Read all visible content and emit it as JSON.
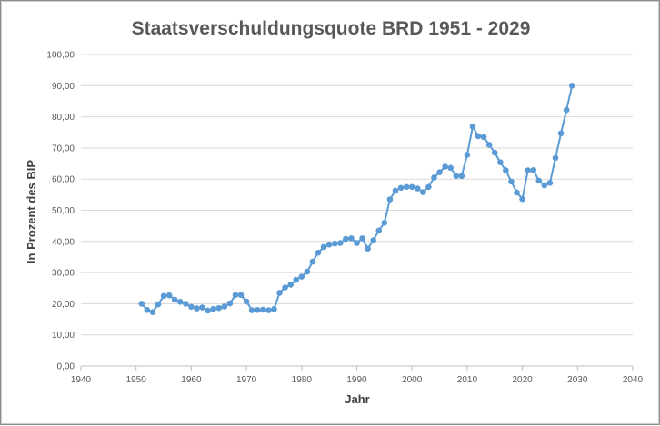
{
  "chart_data": {
    "type": "scatter",
    "title": "Staatsverschuldungsquote BRD 1951 - 2029",
    "xlabel": "Jahr",
    "ylabel": "In Prozent des BIP",
    "xlim": [
      1940,
      2040
    ],
    "ylim": [
      0,
      100
    ],
    "x_ticks": [
      "1940",
      "1950",
      "1960",
      "1970",
      "1980",
      "1990",
      "2000",
      "2010",
      "2020",
      "2030",
      "2040"
    ],
    "y_ticks": [
      "0,00",
      "10,00",
      "20,00",
      "30,00",
      "40,00",
      "50,00",
      "60,00",
      "70,00",
      "80,00",
      "90,00",
      "100,00"
    ],
    "grid": "horizontal",
    "series": [
      {
        "color": "#5b9bd5",
        "marker": "circle",
        "connected": true,
        "x": [
          1951,
          1952,
          1953,
          1954,
          1955,
          1956,
          1957,
          1958,
          1959,
          1960,
          1961,
          1962,
          1963,
          1964,
          1965,
          1966,
          1967,
          1968,
          1969,
          1970,
          1971,
          1972,
          1973,
          1974,
          1975,
          1976,
          1977,
          1978,
          1979,
          1980,
          1981,
          1982,
          1983,
          1984,
          1985,
          1986,
          1987,
          1988,
          1989,
          1990,
          1991,
          1992,
          1993,
          1994,
          1995,
          1996,
          1997,
          1998,
          1999,
          2000,
          2001,
          2002,
          2003,
          2004,
          2005,
          2006,
          2007,
          2008,
          2009,
          2010,
          2011,
          2012,
          2013,
          2014,
          2015,
          2016,
          2017,
          2018,
          2019,
          2020,
          2021,
          2022,
          2023,
          2024,
          2025,
          2026,
          2027,
          2028,
          2029
        ],
        "y": [
          20.0,
          18.0,
          17.3,
          19.8,
          22.5,
          22.7,
          21.3,
          20.6,
          20.0,
          19.0,
          18.5,
          18.8,
          17.8,
          18.3,
          18.6,
          19.1,
          20.1,
          22.8,
          22.8,
          20.7,
          17.9,
          18.0,
          18.1,
          17.9,
          18.3,
          23.5,
          25.2,
          26.1,
          27.7,
          28.7,
          30.3,
          33.5,
          36.4,
          38.2,
          39.0,
          39.3,
          39.5,
          40.8,
          41.0,
          39.5,
          41.0,
          37.7,
          40.4,
          43.5,
          46.0,
          53.5,
          56.3,
          57.2,
          57.5,
          57.5,
          57.0,
          55.8,
          57.5,
          60.5,
          62.2,
          64.0,
          63.6,
          61.0,
          61.0,
          67.8,
          76.9,
          73.8,
          73.5,
          71.0,
          68.5,
          65.4,
          62.8,
          59.2,
          55.7,
          53.6,
          62.8,
          62.9,
          59.5,
          58.0,
          58.8,
          66.8,
          74.7,
          82.2,
          90.0
        ]
      }
    ]
  }
}
